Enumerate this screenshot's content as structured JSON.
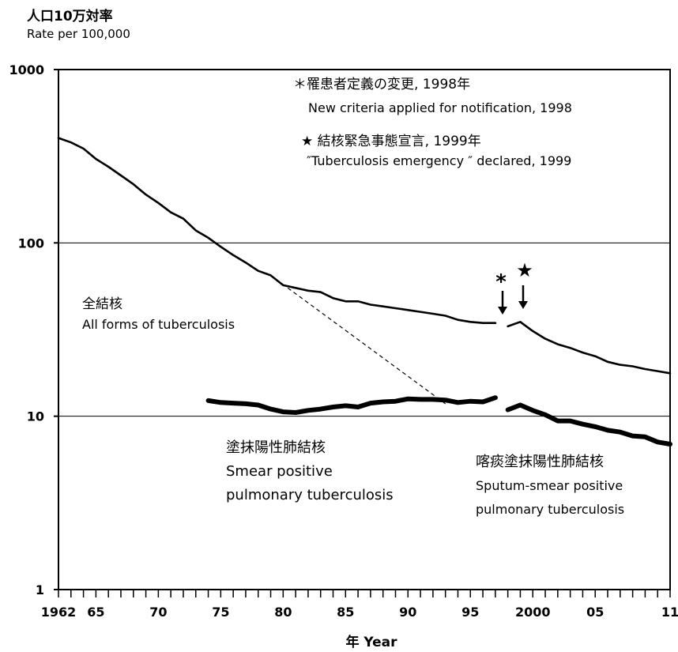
{
  "y_axis_label": {
    "jp": "人口10万対率",
    "en": "Rate per 100,000"
  },
  "x_axis_label": "年 Year",
  "notes": {
    "criteria_jp": "＊罹患者定義の変更, 1998年",
    "criteria_en": "New criteria applied for notification, 1998",
    "emergency_jp": "★ 結核緊急事態宣言, 1999年",
    "emergency_en": "″Tuberculosis emergency ″ declared,  1999",
    "asterisk_symbol": "*",
    "star_symbol": "★"
  },
  "series_labels": {
    "all_jp": "全結核",
    "all_en": "All forms of tuberculosis",
    "smear_jp": "塗抹陽性肺結核",
    "smear_en_1": "Smear positive",
    "smear_en_2": "pulmonary tuberculosis",
    "sputum_jp": "喀痰塗抹陽性肺結核",
    "sputum_en_1": "Sputum-smear positive",
    "sputum_en_2": "pulmonary tuberculosis"
  },
  "chart_data": {
    "type": "line",
    "y_scale": "log",
    "ylim": [
      1,
      1000
    ],
    "xlim": [
      1962,
      2011
    ],
    "y_ticks": [
      1,
      10,
      100,
      1000
    ],
    "y_tick_labels": [
      "1",
      "10",
      "100",
      "1000"
    ],
    "x_ticks": [
      1962,
      1965,
      1970,
      1975,
      1980,
      1985,
      1990,
      1995,
      2000,
      2005,
      2011
    ],
    "x_tick_labels": [
      "1962",
      "65",
      "70",
      "75",
      "80",
      "85",
      "90",
      "95",
      "2000",
      "05",
      "11"
    ],
    "grid": "horizontal at 10 and 100",
    "colors": {
      "line": "#000000"
    },
    "series": [
      {
        "name": "全結核 All forms of tuberculosis",
        "segments": [
          {
            "x": [
              1962,
              1963,
              1964,
              1965,
              1966,
              1967,
              1968,
              1969,
              1970,
              1971,
              1972,
              1973,
              1974,
              1975,
              1976,
              1977,
              1978,
              1979,
              1980,
              1981,
              1982,
              1983,
              1984,
              1985,
              1986,
              1987,
              1988,
              1989,
              1990,
              1991,
              1992,
              1993,
              1994,
              1995,
              1996,
              1997
            ],
            "y": [
              403,
              380,
              350,
              305,
              275,
              245,
              218,
              190,
              170,
              150,
              138,
              118,
              107,
              95,
              85,
              77,
              69,
              65,
              57,
              55,
              53,
              52,
              48,
              46,
              46,
              44,
              43,
              42,
              41,
              40,
              39,
              38,
              36,
              35,
              34.5,
              34.5
            ]
          },
          {
            "x": [
              1998,
              1999,
              2000,
              2001,
              2002,
              2003,
              2004,
              2005,
              2006,
              2007,
              2008,
              2009,
              2010,
              2011
            ],
            "y": [
              33,
              35,
              31,
              28,
              26,
              24.8,
              23.3,
              22.2,
              20.6,
              19.8,
              19.4,
              18.7,
              18.2,
              17.7
            ]
          }
        ]
      },
      {
        "name": "塗抹陽性肺結核 Smear positive pulmonary tuberculosis",
        "segments": [
          {
            "x": [
              1974,
              1975,
              1976,
              1977,
              1978,
              1979,
              1980,
              1981,
              1982,
              1983,
              1984,
              1985,
              1986,
              1987,
              1988,
              1989,
              1990,
              1991,
              1992,
              1993,
              1994,
              1995,
              1996,
              1997
            ],
            "y": [
              12.3,
              12.0,
              11.9,
              11.8,
              11.6,
              11.0,
              10.6,
              10.5,
              10.8,
              11.0,
              11.3,
              11.5,
              11.3,
              11.9,
              12.1,
              12.2,
              12.6,
              12.5,
              12.5,
              12.4,
              12.0,
              12.2,
              12.1,
              12.8
            ]
          }
        ]
      },
      {
        "name": "喀痰塗抹陽性肺結核 Sputum-smear positive pulmonary tuberculosis",
        "segments": [
          {
            "x": [
              1998,
              1999,
              2000,
              2001,
              2002,
              2003,
              2004,
              2005,
              2006,
              2007,
              2008,
              2009,
              2010,
              2011
            ],
            "y": [
              10.9,
              11.6,
              10.8,
              10.2,
              9.4,
              9.4,
              9.0,
              8.7,
              8.3,
              8.1,
              7.7,
              7.6,
              7.1,
              6.9
            ]
          }
        ]
      },
      {
        "name": "trend",
        "style": "dashed",
        "segments": [
          {
            "x": [
              1979,
              1993
            ],
            "y": [
              65,
              11.8
            ]
          }
        ]
      }
    ]
  }
}
